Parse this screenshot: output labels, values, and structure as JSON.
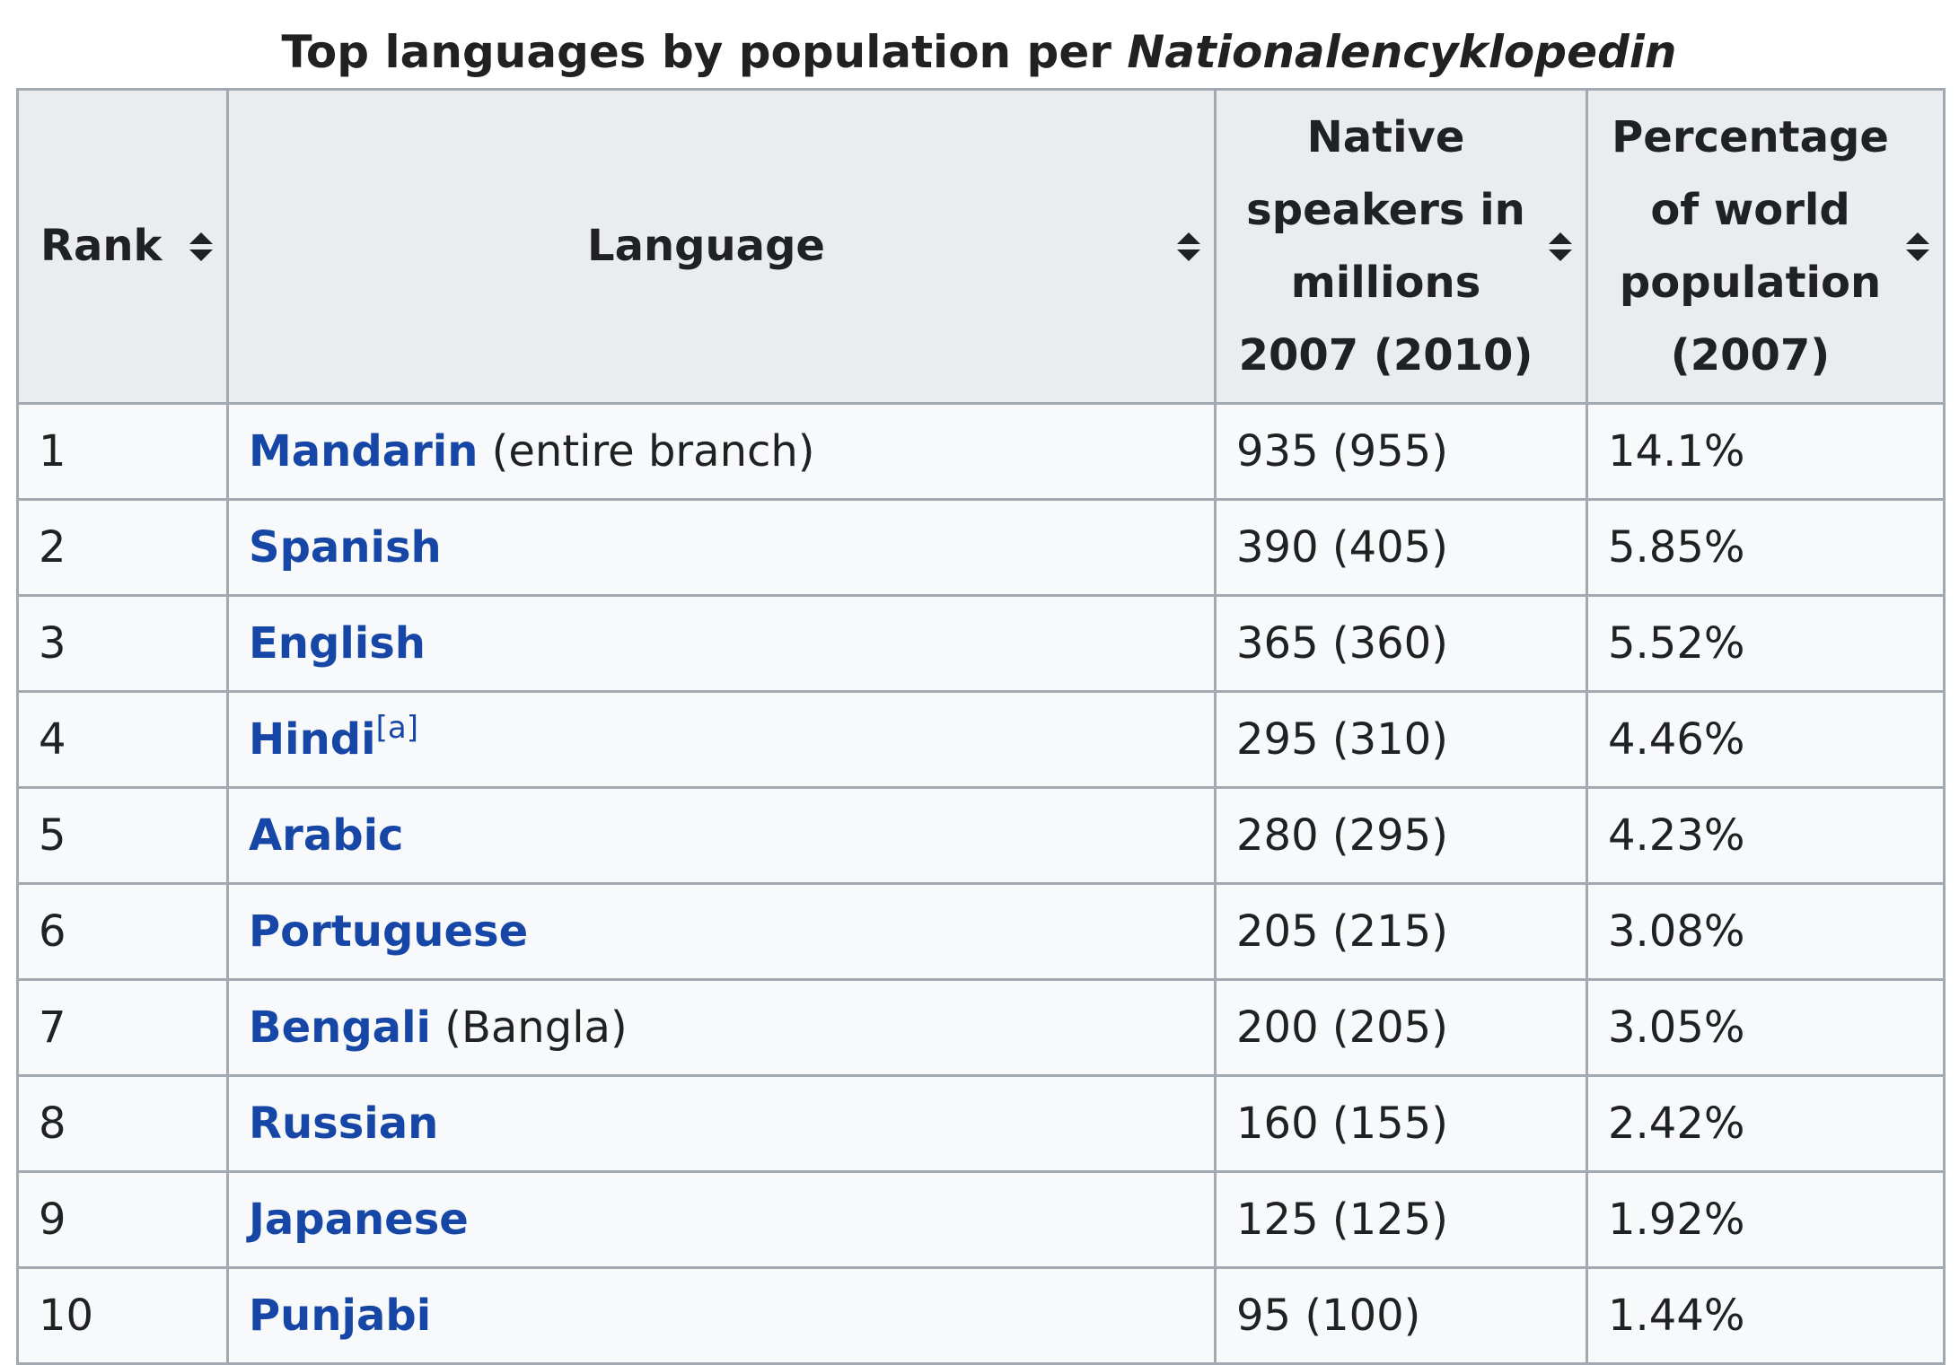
{
  "caption": {
    "prefix": "Top languages by population per",
    "italic": "Nationalencyklopedin"
  },
  "columns": [
    {
      "label": "Rank"
    },
    {
      "label": "Language"
    },
    {
      "label": "Native speakers in millions 2007 (2010)"
    },
    {
      "label": "Percentage of world population (2007)"
    }
  ],
  "sort_icon": "sort-updown-icon",
  "colors": {
    "link": "#1747a6",
    "header_bg": "#eaecf0",
    "cell_bg": "#f8f9fa",
    "border": "#a2a9b1",
    "text": "#202122"
  },
  "rows": [
    {
      "rank": "1",
      "language": "Mandarin",
      "note": "(entire branch)",
      "speakers": "935 (955)",
      "percent": "14.1%"
    },
    {
      "rank": "2",
      "language": "Spanish",
      "note": "",
      "speakers": "390 (405)",
      "percent": "5.85%"
    },
    {
      "rank": "3",
      "language": "English",
      "note": "",
      "speakers": "365 (360)",
      "percent": "5.52%"
    },
    {
      "rank": "4",
      "language": "Hindi",
      "ref": "[a]",
      "note": "",
      "speakers": "295 (310)",
      "percent": "4.46%"
    },
    {
      "rank": "5",
      "language": "Arabic",
      "note": "",
      "speakers": "280 (295)",
      "percent": "4.23%"
    },
    {
      "rank": "6",
      "language": "Portuguese",
      "note": "",
      "speakers": "205 (215)",
      "percent": "3.08%"
    },
    {
      "rank": "7",
      "language": "Bengali",
      "note": "(Bangla)",
      "speakers": "200 (205)",
      "percent": "3.05%"
    },
    {
      "rank": "8",
      "language": "Russian",
      "note": "",
      "speakers": "160 (155)",
      "percent": "2.42%"
    },
    {
      "rank": "9",
      "language": "Japanese",
      "note": "",
      "speakers": "125 (125)",
      "percent": "1.92%"
    },
    {
      "rank": "10",
      "language": "Punjabi",
      "note": "",
      "speakers": "95 (100)",
      "percent": "1.44%"
    }
  ]
}
